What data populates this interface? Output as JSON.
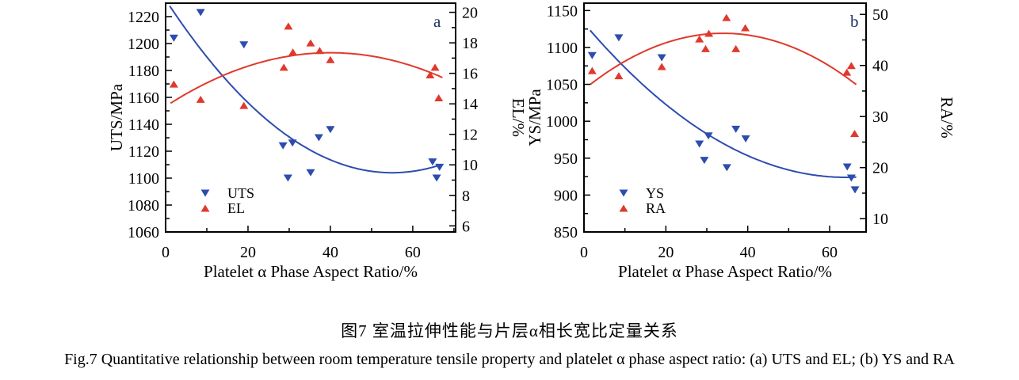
{
  "caption": {
    "chinese": "图7  室温拉伸性能与片层α相长宽比定量关系",
    "english": "Fig.7  Quantitative relationship between room temperature tensile property and platelet α phase aspect ratio: (a) UTS and EL; (b) YS and RA"
  },
  "colors": {
    "blue": "#2d4cae",
    "red": "#e0392c",
    "axis": "#000000",
    "panel_letter": "#1c2f66"
  },
  "chart_data": [
    {
      "id": "a",
      "type": "scatter",
      "panel_label": "a",
      "xlabel": "Platelet α Phase Aspect Ratio/%",
      "xlim": [
        0,
        70.4
      ],
      "x_ticks": [
        0,
        20,
        40,
        60
      ],
      "x_minor_ticks": [
        10,
        30,
        50,
        70
      ],
      "left_axis": {
        "label": "UTS/MPa",
        "lim": [
          1060,
          1230
        ],
        "ticks": [
          1060,
          1080,
          1100,
          1120,
          1140,
          1160,
          1180,
          1200,
          1220
        ],
        "minor_step": 10
      },
      "right_axis": {
        "label": "EL/%",
        "lim": [
          5.6,
          20.6
        ],
        "ticks": [
          6,
          8,
          10,
          12,
          14,
          16,
          18,
          20
        ],
        "minor_step": 1
      },
      "series": [
        {
          "name": "UTS",
          "axis": "left",
          "marker": "triangle-down",
          "color_key": "blue",
          "points": [
            [
              2,
              1204
            ],
            [
              8.5,
              1223
            ],
            [
              19,
              1199
            ],
            [
              28.5,
              1124
            ],
            [
              29.7,
              1100
            ],
            [
              30.8,
              1126
            ],
            [
              35.2,
              1104
            ],
            [
              37.2,
              1130
            ],
            [
              40,
              1136
            ],
            [
              64.8,
              1112
            ],
            [
              65.8,
              1100
            ],
            [
              66.5,
              1108
            ]
          ]
        },
        {
          "name": "EL",
          "axis": "right",
          "marker": "triangle-up",
          "color_key": "red",
          "points": [
            [
              2,
              15.3
            ],
            [
              8.5,
              14.3
            ],
            [
              19,
              13.9
            ],
            [
              28.7,
              16.4
            ],
            [
              29.8,
              19.1
            ],
            [
              30.9,
              17.4
            ],
            [
              35.2,
              18.0
            ],
            [
              37.4,
              17.5
            ],
            [
              40,
              16.9
            ],
            [
              64.2,
              15.9
            ],
            [
              65.4,
              16.4
            ],
            [
              66.3,
              14.4
            ]
          ]
        }
      ],
      "curves": [
        {
          "series": "UTS",
          "axis": "left",
          "color_key": "blue",
          "vertex": [
            55,
            1104
          ],
          "a": 0.0425,
          "x_range": [
            1,
            67
          ]
        },
        {
          "series": "EL",
          "axis": "right",
          "color_key": "red",
          "vertex": [
            40,
            17.35
          ],
          "a": -0.0022,
          "x_range": [
            1.2,
            67.5
          ]
        }
      ],
      "legend": [
        {
          "label": "UTS",
          "marker": "triangle-down",
          "color_key": "blue"
        },
        {
          "label": "EL",
          "marker": "triangle-up",
          "color_key": "red"
        }
      ]
    },
    {
      "id": "b",
      "type": "scatter",
      "panel_label": "b",
      "xlabel": "Platelet α Phase Aspect Ratio/%",
      "xlim": [
        0,
        68.9
      ],
      "x_ticks": [
        0,
        20,
        40,
        60
      ],
      "x_minor_ticks": [
        10,
        30,
        50
      ],
      "left_axis": {
        "label": "YS/MPa",
        "lim": [
          850,
          1160
        ],
        "ticks": [
          850,
          900,
          950,
          1000,
          1050,
          1100,
          1150
        ],
        "minor_step": 25
      },
      "right_axis": {
        "label": "RA/%",
        "lim": [
          7.4,
          52.2
        ],
        "ticks": [
          10,
          20,
          30,
          40,
          50
        ],
        "minor_step": 5
      },
      "series": [
        {
          "name": "YS",
          "axis": "left",
          "marker": "triangle-down",
          "color_key": "blue",
          "points": [
            [
              2,
              1089
            ],
            [
              8.5,
              1113
            ],
            [
              19,
              1086
            ],
            [
              28.2,
              969
            ],
            [
              29.4,
              947
            ],
            [
              30.4,
              980
            ],
            [
              34.9,
              937
            ],
            [
              37.1,
              989
            ],
            [
              39.5,
              976
            ],
            [
              64.3,
              938
            ],
            [
              65.3,
              923
            ],
            [
              66.2,
              907
            ]
          ]
        },
        {
          "name": "RA",
          "axis": "right",
          "marker": "triangle-up",
          "color_key": "red",
          "points": [
            [
              2,
              39
            ],
            [
              8.5,
              38
            ],
            [
              19,
              39.8
            ],
            [
              28.2,
              45.2
            ],
            [
              29.7,
              43.3
            ],
            [
              30.5,
              46.3
            ],
            [
              34.8,
              49.4
            ],
            [
              37.1,
              43.3
            ],
            [
              39.4,
              47.4
            ],
            [
              64.2,
              38.7
            ],
            [
              65.3,
              40
            ],
            [
              66.1,
              26.7
            ]
          ]
        }
      ],
      "curves": [
        {
          "series": "YS",
          "axis": "left",
          "color_key": "blue",
          "vertex": [
            64,
            924
          ],
          "a": 0.051,
          "x_range": [
            1.5,
            66.5
          ]
        },
        {
          "series": "RA",
          "axis": "right",
          "color_key": "red",
          "vertex": [
            34,
            46.3
          ],
          "a": -0.0095,
          "x_range": [
            1.5,
            66.5
          ]
        }
      ],
      "legend": [
        {
          "label": "YS",
          "marker": "triangle-down",
          "color_key": "blue"
        },
        {
          "label": "RA",
          "marker": "triangle-up",
          "color_key": "red"
        }
      ]
    }
  ]
}
